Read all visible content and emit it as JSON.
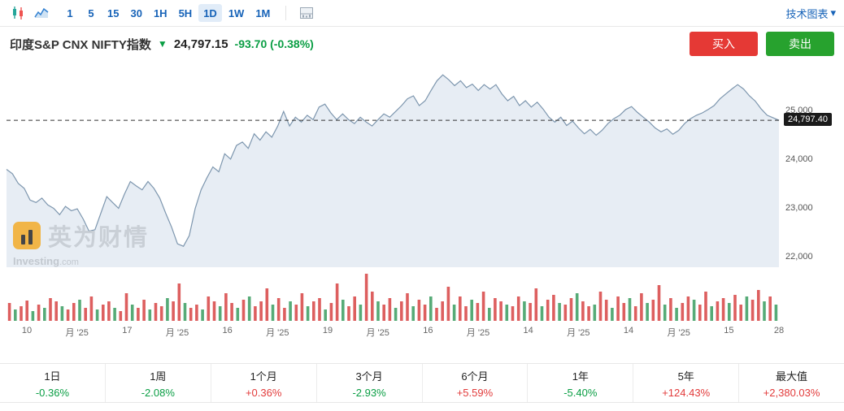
{
  "toolbar": {
    "timeframes": [
      {
        "label": "1",
        "active": false
      },
      {
        "label": "5",
        "active": false
      },
      {
        "label": "15",
        "active": false
      },
      {
        "label": "30",
        "active": false
      },
      {
        "label": "1H",
        "active": false
      },
      {
        "label": "5H",
        "active": false
      },
      {
        "label": "1D",
        "active": true
      },
      {
        "label": "1W",
        "active": false
      },
      {
        "label": "1M",
        "active": false
      }
    ],
    "right_link": "技术图表",
    "caret": "▾"
  },
  "header": {
    "title": "印度S&P CNX NIFTY指数",
    "direction_arrow": "▼",
    "price": "24,797.15",
    "change": "-93.70 (-0.38%)",
    "buy_label": "买入",
    "sell_label": "卖出"
  },
  "watermark": {
    "cn": "英为财情",
    "en": "Investing",
    "dotcom": ".com"
  },
  "chart_data": {
    "type": "area",
    "title": "印度S&P CNX NIFTY指数 1D",
    "ylim": [
      21780,
      25950
    ],
    "y_ticks": [
      25000,
      24000,
      23000,
      22000
    ],
    "y_tick_labels": [
      "25,000",
      "24,000",
      "23,000",
      "22,000"
    ],
    "last_price": 24797.4,
    "last_price_label": "24,797.40",
    "x_labels": [
      "10",
      "月 '25",
      "17",
      "月 '25",
      "16",
      "月 '25",
      "19",
      "月 '25",
      "16",
      "月 '25",
      "14",
      "月 '25",
      "14",
      "月 '25",
      "15",
      "28"
    ],
    "prices": [
      23790,
      23700,
      23500,
      23400,
      23160,
      23110,
      23200,
      23060,
      22990,
      22860,
      23030,
      22940,
      22980,
      22770,
      22520,
      22550,
      22890,
      23230,
      23110,
      22990,
      23280,
      23540,
      23450,
      23370,
      23540,
      23400,
      23200,
      22890,
      22600,
      22260,
      22210,
      22430,
      22990,
      23370,
      23620,
      23840,
      23740,
      24110,
      24000,
      24280,
      24350,
      24220,
      24520,
      24390,
      24560,
      24450,
      24680,
      24980,
      24680,
      24860,
      24760,
      24900,
      24810,
      25070,
      25130,
      24950,
      24810,
      24930,
      24810,
      24730,
      24860,
      24760,
      24680,
      24810,
      24930,
      24860,
      24980,
      25100,
      25240,
      25300,
      25100,
      25200,
      25410,
      25610,
      25730,
      25630,
      25510,
      25610,
      25470,
      25540,
      25410,
      25530,
      25440,
      25530,
      25340,
      25200,
      25290,
      25100,
      25200,
      25070,
      25170,
      25030,
      24860,
      24760,
      24860,
      24690,
      24780,
      24640,
      24520,
      24610,
      24490,
      24590,
      24730,
      24830,
      24900,
      25020,
      25080,
      24960,
      24860,
      24760,
      24640,
      24560,
      24620,
      24510,
      24590,
      24730,
      24830,
      24900,
      24950,
      25020,
      25100,
      25240,
      25340,
      25440,
      25530,
      25440,
      25300,
      25190,
      25030,
      24900,
      24850,
      24797
    ],
    "volumes": [
      22,
      -14,
      18,
      25,
      -12,
      20,
      -16,
      28,
      24,
      -18,
      14,
      22,
      -26,
      16,
      30,
      -14,
      20,
      24,
      -16,
      12,
      34,
      -20,
      16,
      26,
      -14,
      22,
      18,
      -28,
      24,
      46,
      -22,
      16,
      20,
      -14,
      30,
      24,
      -18,
      34,
      22,
      -16,
      26,
      -30,
      18,
      24,
      40,
      -20,
      28,
      16,
      -24,
      20,
      34,
      -18,
      24,
      28,
      -14,
      22,
      46,
      -26,
      18,
      30,
      -20,
      58,
      36,
      -24,
      20,
      28,
      -16,
      24,
      34,
      -18,
      26,
      20,
      -30,
      16,
      24,
      42,
      -20,
      30,
      18,
      -26,
      22,
      36,
      -16,
      28,
      24,
      -20,
      18,
      30,
      -24,
      22,
      40,
      -18,
      26,
      32,
      -22,
      20,
      28,
      -34,
      24,
      18,
      -20,
      36,
      26,
      -16,
      30,
      22,
      -28,
      18,
      34,
      -22,
      26,
      44,
      -20,
      28,
      -16,
      22,
      30,
      -26,
      20,
      36,
      -18,
      24,
      28,
      -22,
      32,
      20,
      -30,
      26,
      38,
      -24,
      30,
      -20
    ],
    "colors": {
      "line": "#7d96ae",
      "fill": "#e7edf4",
      "up": "#dd5f5f",
      "down": "#56ab77",
      "dashed": "#333333"
    }
  },
  "stats": {
    "items": [
      {
        "label": "1日",
        "value": "-0.36%",
        "dir": "down"
      },
      {
        "label": "1周",
        "value": "-2.08%",
        "dir": "down"
      },
      {
        "label": "1个月",
        "value": "+0.36%",
        "dir": "up"
      },
      {
        "label": "3个月",
        "value": "-2.93%",
        "dir": "down"
      },
      {
        "label": "6个月",
        "value": "+5.59%",
        "dir": "up"
      },
      {
        "label": "1年",
        "value": "-5.40%",
        "dir": "down"
      },
      {
        "label": "5年",
        "value": "+124.43%",
        "dir": "up"
      },
      {
        "label": "最大值",
        "value": "+2,380.03%",
        "dir": "up"
      }
    ]
  }
}
